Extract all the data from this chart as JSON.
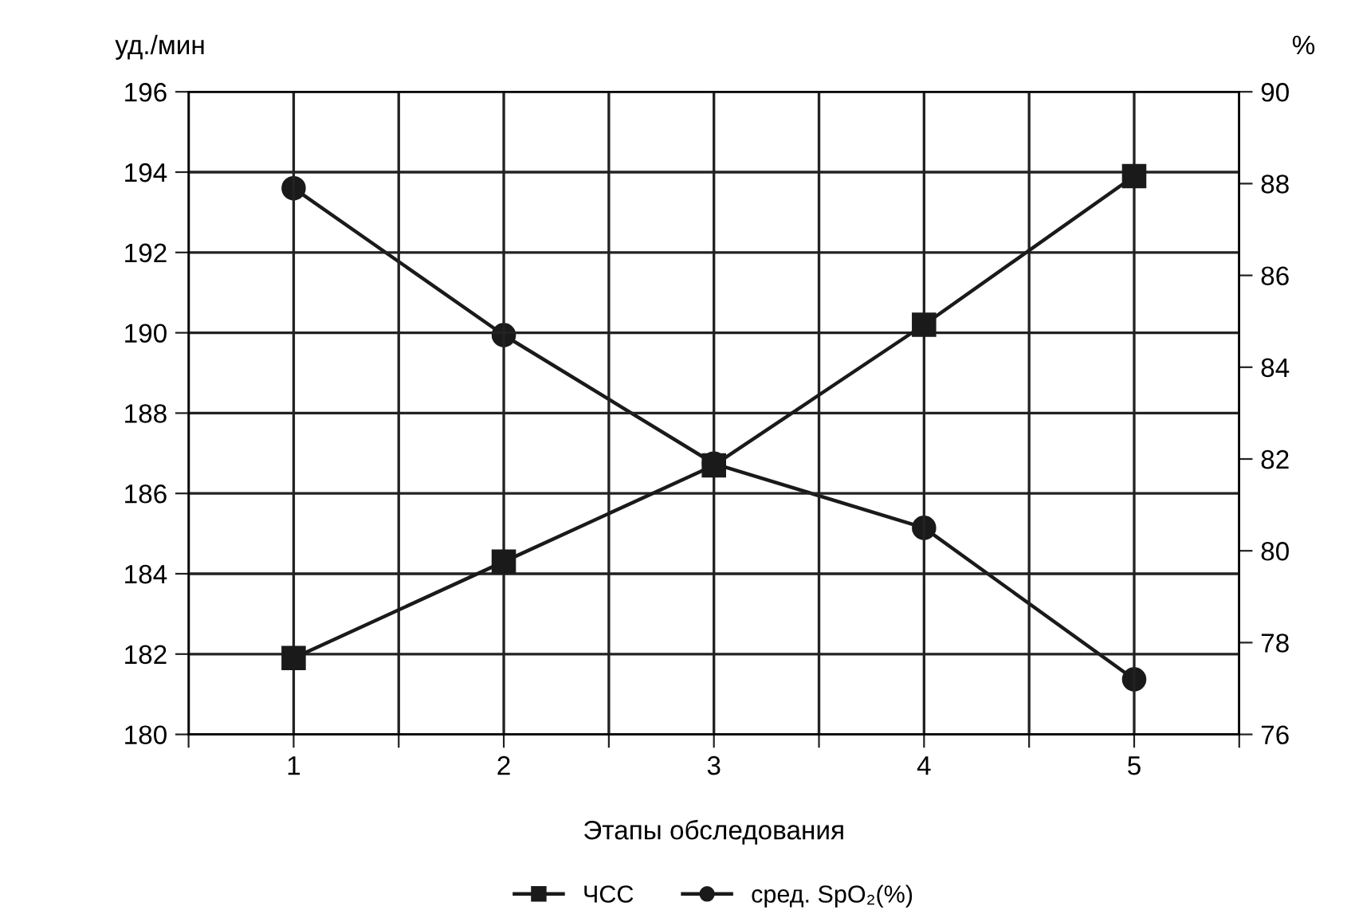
{
  "chart_data": {
    "type": "line",
    "xlabel": "Этапы обследования",
    "ylabel": "уд./мин",
    "y2label": "%",
    "x": [
      1,
      2,
      3,
      4,
      5
    ],
    "series": [
      {
        "name": "ЧСС",
        "color": "#1a1a1a",
        "marker": "square",
        "values": [
          181.9,
          184.3,
          186.7,
          190.2,
          193.9
        ]
      },
      {
        "name": "сред. SpO₂(%)",
        "color": "#1a1a1a",
        "marker": "circle",
        "axis": "y2",
        "values": [
          87.9,
          84.7,
          81.9,
          80.5,
          77.2
        ]
      }
    ],
    "xlim": [
      0.5,
      5.5
    ],
    "xticks": [
      {
        "value": 0.5,
        "label": null
      },
      1,
      {
        "value": 1.5,
        "label": null
      },
      2,
      {
        "value": 2.5,
        "label": null
      },
      3,
      {
        "value": 3.5,
        "label": null
      },
      4,
      {
        "value": 4.5,
        "label": null
      },
      5,
      {
        "value": 5.5,
        "label": null
      }
    ],
    "ylim": [
      180,
      196
    ],
    "yticks": [
      180,
      182,
      184,
      186,
      188,
      190,
      192,
      194,
      196
    ],
    "y2lim": [
      76,
      90
    ],
    "y2ticks": [
      76,
      78,
      80,
      82,
      84,
      86,
      88,
      90
    ],
    "grid": true,
    "legend": "bottom",
    "line_style": "solid"
  }
}
